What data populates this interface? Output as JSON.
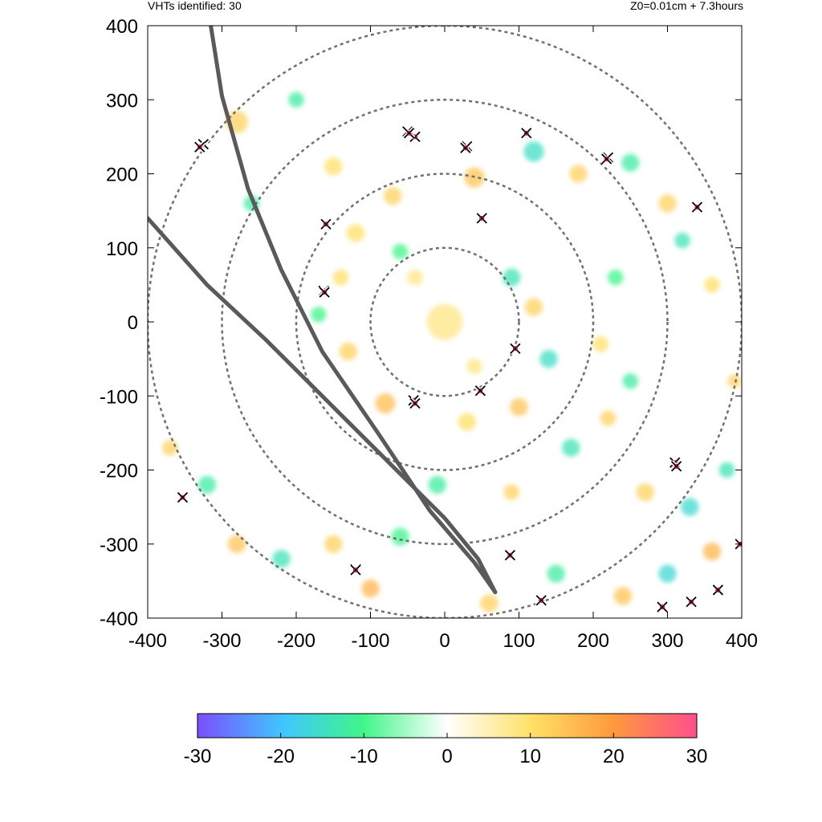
{
  "header": {
    "left_text": "VHTs identified: 30",
    "right_text": "Z0=0.01cm  + 7.3hours"
  },
  "chart_data": {
    "type": "heatmap",
    "title": "",
    "xlabel": "",
    "ylabel": "",
    "xlim": [
      -400,
      400
    ],
    "ylim": [
      -400,
      400
    ],
    "x_ticks": [
      "-400",
      "-300",
      "-200",
      "-100",
      "0",
      "100",
      "200",
      "300",
      "400"
    ],
    "y_ticks": [
      "400",
      "300",
      "200",
      "100",
      "0",
      "-100",
      "-200",
      "-300",
      "-400"
    ],
    "range_rings_radius": [
      100,
      200,
      300,
      400
    ],
    "colorbar": {
      "range": [
        -30,
        30
      ],
      "ticks": [
        "-30",
        "-20",
        "-10",
        "0",
        "10",
        "20",
        "30"
      ],
      "colors": [
        "#7b4dff",
        "#3fc6ff",
        "#3ff58a",
        "#ffffff",
        "#ffe066",
        "#ff9a3c",
        "#ff4f8b"
      ]
    },
    "radar_tracks": [
      {
        "name": "",
        "points": [
          [
            -315,
            400
          ],
          [
            -300,
            305
          ],
          [
            -265,
            180
          ],
          [
            -220,
            70
          ],
          [
            -165,
            -40
          ],
          [
            -90,
            -150
          ],
          [
            -20,
            -255
          ],
          [
            40,
            -325
          ],
          [
            68,
            -365
          ]
        ]
      },
      {
        "name": "",
        "points": [
          [
            -400,
            140
          ],
          [
            -320,
            50
          ],
          [
            -240,
            -25
          ],
          [
            -160,
            -105
          ],
          [
            -80,
            -185
          ],
          [
            0,
            -265
          ],
          [
            45,
            -320
          ],
          [
            68,
            -365
          ]
        ]
      }
    ],
    "vht_count": 30,
    "vht_markers": [
      [
        -325,
        240
      ],
      [
        -50,
        257
      ],
      [
        -40,
        250
      ],
      [
        30,
        237
      ],
      [
        110,
        255
      ],
      [
        220,
        222
      ],
      [
        340,
        155
      ],
      [
        -160,
        132
      ],
      [
        50,
        140
      ],
      [
        -163,
        42
      ],
      [
        95,
        -36
      ],
      [
        48,
        -93
      ],
      [
        -42,
        -106
      ],
      [
        -40,
        -110
      ],
      [
        310,
        -190
      ],
      [
        312,
        -195
      ],
      [
        -353,
        -237
      ],
      [
        88,
        -315
      ],
      [
        -120,
        -334
      ],
      [
        130,
        -376
      ],
      [
        293,
        -385
      ],
      [
        332,
        -378
      ],
      [
        368,
        -362
      ],
      [
        398,
        -300
      ],
      [
        -330,
        236
      ],
      [
        -48,
        255
      ],
      [
        28,
        235
      ],
      [
        218,
        220
      ],
      [
        -162,
        40
      ],
      [
        -120,
        -335
      ]
    ],
    "color_field": [
      {
        "x": 0,
        "y": 0,
        "v": 8,
        "r": 16
      },
      {
        "x": -280,
        "y": 270,
        "v": 12,
        "r": 10
      },
      {
        "x": -200,
        "y": 300,
        "v": -12,
        "r": 7
      },
      {
        "x": -150,
        "y": 210,
        "v": 10,
        "r": 8
      },
      {
        "x": -70,
        "y": 170,
        "v": 12,
        "r": 8
      },
      {
        "x": 40,
        "y": 195,
        "v": 14,
        "r": 9
      },
      {
        "x": 120,
        "y": 230,
        "v": -15,
        "r": 9
      },
      {
        "x": 180,
        "y": 200,
        "v": 12,
        "r": 8
      },
      {
        "x": 250,
        "y": 215,
        "v": -12,
        "r": 8
      },
      {
        "x": 300,
        "y": 160,
        "v": 12,
        "r": 8
      },
      {
        "x": 320,
        "y": 110,
        "v": -14,
        "r": 7
      },
      {
        "x": 360,
        "y": 50,
        "v": 10,
        "r": 7
      },
      {
        "x": -120,
        "y": 120,
        "v": 10,
        "r": 8
      },
      {
        "x": -60,
        "y": 95,
        "v": -10,
        "r": 7
      },
      {
        "x": 90,
        "y": 60,
        "v": -14,
        "r": 8
      },
      {
        "x": 120,
        "y": 20,
        "v": 12,
        "r": 8
      },
      {
        "x": 140,
        "y": -50,
        "v": -15,
        "r": 8
      },
      {
        "x": 100,
        "y": -115,
        "v": 14,
        "r": 8
      },
      {
        "x": 30,
        "y": -135,
        "v": 10,
        "r": 8
      },
      {
        "x": -80,
        "y": -110,
        "v": 15,
        "r": 9
      },
      {
        "x": -130,
        "y": -40,
        "v": 12,
        "r": 8
      },
      {
        "x": -170,
        "y": 10,
        "v": -10,
        "r": 7
      },
      {
        "x": -140,
        "y": 60,
        "v": 10,
        "r": 7
      },
      {
        "x": 170,
        "y": -170,
        "v": -14,
        "r": 8
      },
      {
        "x": 220,
        "y": -130,
        "v": 12,
        "r": 7
      },
      {
        "x": 250,
        "y": -80,
        "v": -12,
        "r": 7
      },
      {
        "x": 270,
        "y": -230,
        "v": 12,
        "r": 8
      },
      {
        "x": 330,
        "y": -250,
        "v": -16,
        "r": 8
      },
      {
        "x": 360,
        "y": -310,
        "v": 16,
        "r": 8
      },
      {
        "x": 300,
        "y": -340,
        "v": -16,
        "r": 8
      },
      {
        "x": 240,
        "y": -370,
        "v": 14,
        "r": 8
      },
      {
        "x": 150,
        "y": -340,
        "v": -12,
        "r": 8
      },
      {
        "x": 60,
        "y": -380,
        "v": 12,
        "r": 8
      },
      {
        "x": -60,
        "y": -290,
        "v": -10,
        "r": 8
      },
      {
        "x": -150,
        "y": -300,
        "v": 12,
        "r": 8
      },
      {
        "x": -220,
        "y": -320,
        "v": -14,
        "r": 8
      },
      {
        "x": -280,
        "y": -300,
        "v": 14,
        "r": 8
      },
      {
        "x": -320,
        "y": -220,
        "v": -12,
        "r": 8
      },
      {
        "x": -370,
        "y": -170,
        "v": 12,
        "r": 7
      },
      {
        "x": -100,
        "y": -360,
        "v": 16,
        "r": 8
      },
      {
        "x": -10,
        "y": -220,
        "v": -12,
        "r": 8
      },
      {
        "x": 90,
        "y": -230,
        "v": 12,
        "r": 7
      },
      {
        "x": 230,
        "y": 60,
        "v": -10,
        "r": 7
      },
      {
        "x": 210,
        "y": -30,
        "v": 10,
        "r": 7
      },
      {
        "x": 380,
        "y": -200,
        "v": -14,
        "r": 7
      },
      {
        "x": 390,
        "y": -80,
        "v": 12,
        "r": 6
      },
      {
        "x": -260,
        "y": 160,
        "v": -12,
        "r": 7
      },
      {
        "x": -40,
        "y": 60,
        "v": 8,
        "r": 7
      },
      {
        "x": 40,
        "y": -60,
        "v": 8,
        "r": 7
      }
    ]
  }
}
